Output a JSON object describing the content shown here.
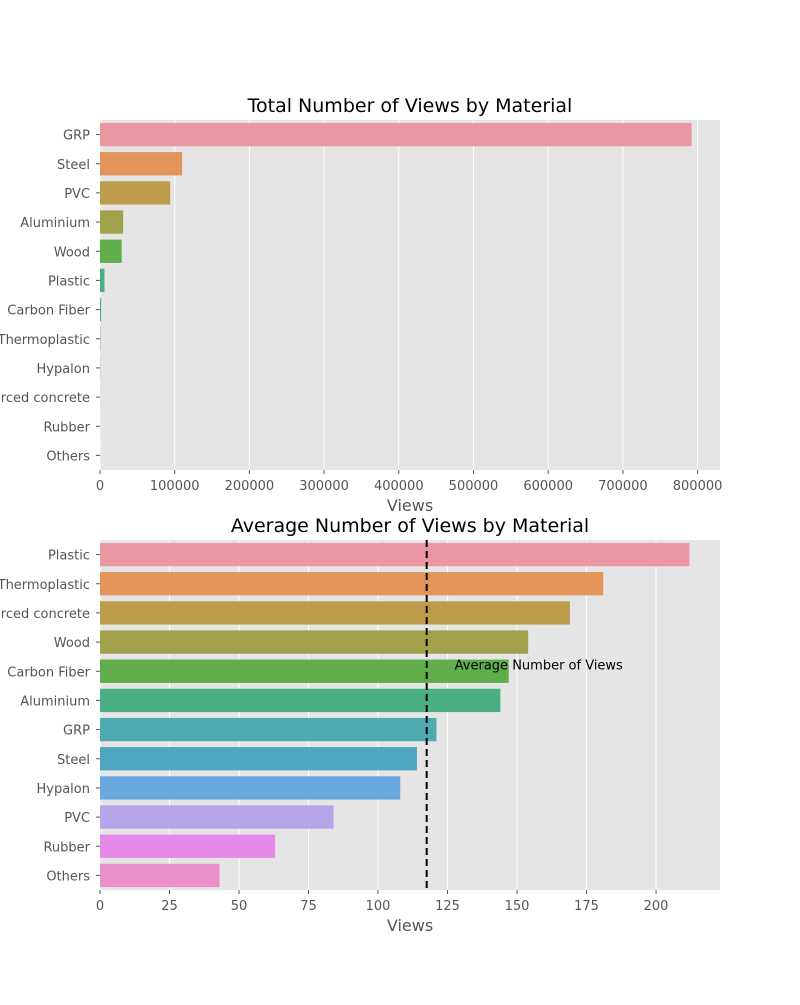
{
  "chart_data": [
    {
      "type": "bar",
      "orientation": "horizontal",
      "title": "Total Number of Views by Material",
      "xlabel": "Views",
      "ylabel": "",
      "xlim": [
        0,
        830000
      ],
      "xticks": [
        0,
        100000,
        200000,
        300000,
        400000,
        500000,
        600000,
        700000,
        800000
      ],
      "grid": true,
      "categories": [
        "GRP",
        "Steel",
        "PVC",
        "Aluminium",
        "Wood",
        "Plastic",
        "Carbon Fiber",
        "Thermoplastic",
        "Hypalon",
        "Reinforced concrete",
        "Rubber",
        "Others"
      ],
      "values": [
        792000,
        110000,
        94000,
        31000,
        29000,
        6000,
        1500,
        500,
        300,
        200,
        100,
        50
      ],
      "colors": [
        "#ea96a3",
        "#e2945b",
        "#bd9c4b",
        "#a1a14b",
        "#5fae4b",
        "#4baf86",
        "#4caf9a",
        "#4caab0",
        "#4fa7c2",
        "#6aa8e0",
        "#b6a5e8",
        "#e68ae9"
      ]
    },
    {
      "type": "bar",
      "orientation": "horizontal",
      "title": "Average Number of Views by Material",
      "xlabel": "Views",
      "ylabel": "",
      "xlim": [
        0,
        223
      ],
      "xticks": [
        0,
        25,
        50,
        75,
        100,
        125,
        150,
        175,
        200
      ],
      "grid": true,
      "categories": [
        "Plastic",
        "Thermoplastic",
        "Reinforced concrete",
        "Wood",
        "Carbon Fiber",
        "Aluminium",
        "GRP",
        "Steel",
        "Hypalon",
        "PVC",
        "Rubber",
        "Others"
      ],
      "values": [
        212,
        181,
        169,
        154,
        147,
        144,
        121,
        114,
        108,
        84,
        63,
        43
      ],
      "colors": [
        "#ea96a3",
        "#e2945b",
        "#bd9c4b",
        "#a1a14b",
        "#5fae4b",
        "#4baf86",
        "#4caab0",
        "#4fa7c2",
        "#6aa8e0",
        "#b6a5e8",
        "#e68ae9",
        "#ea8fcb"
      ],
      "reference_line": {
        "value": 117.5,
        "label": "Average Number of Views"
      }
    }
  ]
}
